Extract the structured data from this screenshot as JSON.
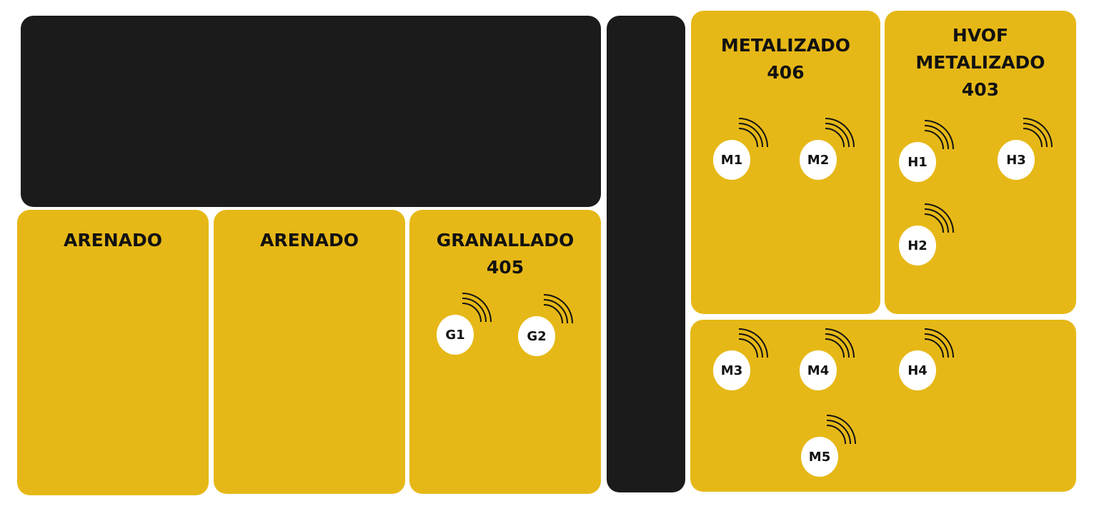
{
  "colors": {
    "zone": "#e6b817",
    "dark": "#1b1b1b",
    "sensor": "#ffffff",
    "text": "#111111"
  },
  "zones": {
    "arenado_1": {
      "title": "ARENADO"
    },
    "arenado_2": {
      "title": "ARENADO"
    },
    "granallado": {
      "title_line1": "GRANALLADO",
      "title_line2": "405"
    },
    "metalizado": {
      "title_line1": "METALIZADO",
      "title_line2": "406"
    },
    "hvof": {
      "title_line1": "HVOF",
      "title_line2": "METALIZADO",
      "title_line3": "403"
    }
  },
  "sensors": {
    "G1": "G1",
    "G2": "G2",
    "M1": "M1",
    "M2": "M2",
    "M3": "M3",
    "M4": "M4",
    "M5": "M5",
    "H1": "H1",
    "H2": "H2",
    "H3": "H3",
    "H4": "H4"
  }
}
